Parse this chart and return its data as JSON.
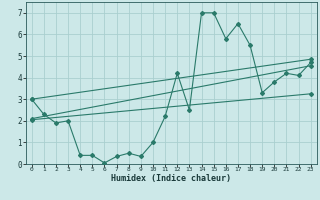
{
  "title": "",
  "xlabel": "Humidex (Indice chaleur)",
  "background_color": "#cce8e8",
  "grid_color": "#aacfcf",
  "line_color": "#2a7a6a",
  "xlim": [
    -0.5,
    23.5
  ],
  "ylim": [
    0,
    7.5
  ],
  "xticks": [
    0,
    1,
    2,
    3,
    4,
    5,
    6,
    7,
    8,
    9,
    10,
    11,
    12,
    13,
    14,
    15,
    16,
    17,
    18,
    19,
    20,
    21,
    22,
    23
  ],
  "yticks": [
    0,
    1,
    2,
    3,
    4,
    5,
    6,
    7
  ],
  "series1_x": [
    0,
    1,
    2,
    3,
    4,
    5,
    6,
    7,
    8,
    9,
    10,
    11,
    12,
    13,
    14,
    15,
    16,
    17,
    18,
    19,
    20,
    21,
    22,
    23
  ],
  "series1_y": [
    3.0,
    2.3,
    1.9,
    2.0,
    0.4,
    0.4,
    0.05,
    0.35,
    0.5,
    0.35,
    1.0,
    2.2,
    4.2,
    2.5,
    7.0,
    7.0,
    5.8,
    6.5,
    5.5,
    3.3,
    3.8,
    4.2,
    4.1,
    4.7
  ],
  "series2_x": [
    0,
    23
  ],
  "series2_y": [
    2.1,
    4.55
  ],
  "series3_x": [
    0,
    23
  ],
  "series3_y": [
    2.05,
    3.25
  ],
  "series4_x": [
    0,
    23
  ],
  "series4_y": [
    3.0,
    4.85
  ]
}
